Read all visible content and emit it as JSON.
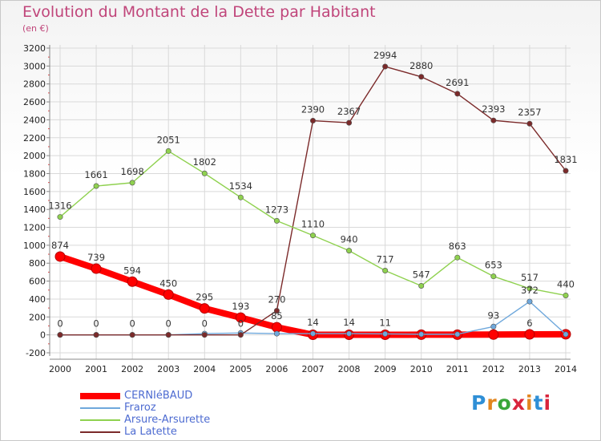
{
  "title": "Evolution du Montant de la Dette par Habitant",
  "subtitle": "(en €)",
  "logo": "Proxiti",
  "colors": {
    "title": "#c0457a",
    "grid": "#d9d9d9",
    "axis": "#888888"
  },
  "chart_data": {
    "type": "line",
    "title": "Evolution du Montant de la Dette par Habitant",
    "ylabel": "(en €)",
    "xlabel": "",
    "x": [
      "2000",
      "2001",
      "2002",
      "2003",
      "2004",
      "2005",
      "2006",
      "2007",
      "2008",
      "2009",
      "2010",
      "2011",
      "2012",
      "2013",
      "2014"
    ],
    "yticks": [
      3200,
      3000,
      2800,
      2600,
      2400,
      2200,
      2000,
      1800,
      1600,
      1400,
      1200,
      1000,
      800,
      600,
      400,
      200,
      0,
      -200
    ],
    "ylim": [
      -200,
      3200
    ],
    "grid": true,
    "legend_position": "bottom-left",
    "series": [
      {
        "name": "CERNIéBAUD",
        "color": "#ff0000",
        "values": [
          874,
          739,
          594,
          450,
          295,
          193,
          85,
          1,
          1,
          1,
          2,
          2,
          3,
          6,
          7
        ],
        "labels": [
          "874",
          "739",
          "594",
          "450",
          "295",
          "193",
          "85",
          "",
          "",
          "",
          "",
          "",
          "",
          "6",
          ""
        ]
      },
      {
        "name": "Fraroz",
        "color": "#6fa8dc",
        "values": [
          0,
          0,
          0,
          0,
          14,
          21,
          14,
          14,
          14,
          11,
          7,
          7,
          93,
          372,
          7
        ],
        "labels": [
          "",
          "",
          "",
          "",
          "",
          "",
          "",
          "14",
          "14",
          "11",
          "",
          "",
          "93",
          "372",
          ""
        ]
      },
      {
        "name": "Arsure-Arsurette",
        "color": "#8fd14f",
        "values": [
          1316,
          1661,
          1698,
          2051,
          1802,
          1534,
          1273,
          1110,
          940,
          717,
          547,
          863,
          653,
          517,
          440
        ],
        "labels": [
          "1316",
          "1661",
          "1698",
          "2051",
          "1802",
          "1534",
          "1273",
          "1110",
          "940",
          "717",
          "547",
          "863",
          "653",
          "517",
          "440"
        ]
      },
      {
        "name": "La Latette",
        "color": "#7b2a2a",
        "values": [
          0,
          0,
          0,
          0,
          0,
          0,
          270,
          2390,
          2367,
          2994,
          2880,
          2691,
          2393,
          2357,
          1831
        ],
        "labels": [
          "0",
          "0",
          "0",
          "0",
          "0",
          "0",
          "270",
          "2390",
          "2367",
          "2994",
          "2880",
          "2691",
          "2393",
          "2357",
          "1831"
        ]
      }
    ]
  }
}
